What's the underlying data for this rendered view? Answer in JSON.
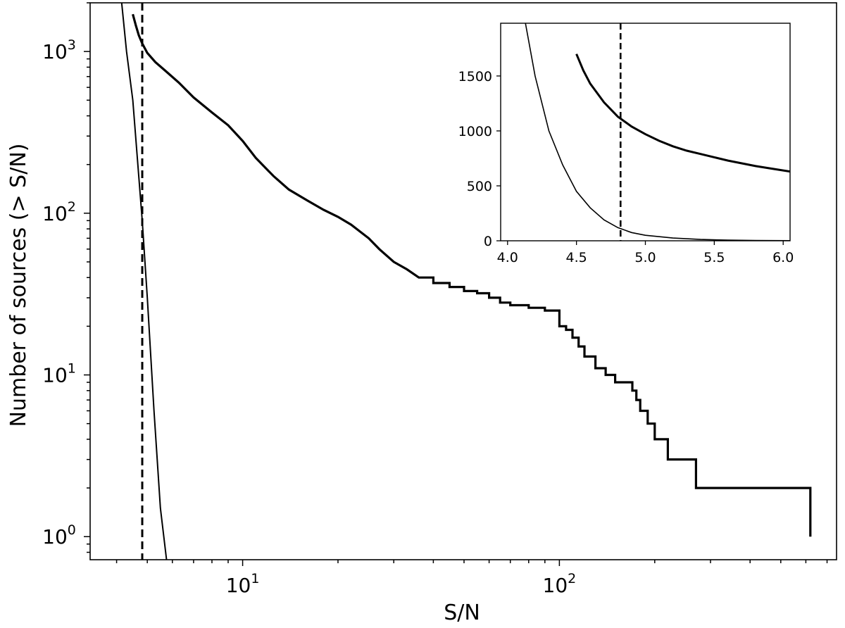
{
  "chart_data": [
    {
      "type": "line",
      "panel": "main",
      "xlabel": "S/N",
      "ylabel": "Number of sources (> S/N)",
      "xscale": "log",
      "yscale": "log",
      "xlim": [
        3.3,
        750
      ],
      "ylim": [
        0.72,
        2000
      ],
      "xticks": [
        {
          "value": 10,
          "base": "10",
          "exp": "1"
        },
        {
          "value": 100,
          "base": "10",
          "exp": "2"
        }
      ],
      "yticks": [
        {
          "value": 1,
          "base": "10",
          "exp": "0"
        },
        {
          "value": 10,
          "base": "10",
          "exp": "1"
        },
        {
          "value": 100,
          "base": "10",
          "exp": "2"
        },
        {
          "value": 1000,
          "base": "10",
          "exp": "3"
        }
      ],
      "grid": false,
      "legend": "none",
      "threshold_x": 4.82,
      "series": [
        {
          "style": "thick step",
          "x": [
            4.5,
            4.6,
            4.7,
            4.82,
            5.0,
            5.3,
            5.7,
            6.3,
            7.0,
            8.0,
            9.0,
            10.0,
            11.0,
            12.5,
            14.0,
            16.0,
            18.0,
            20.0,
            22.0,
            25.0,
            27.0,
            30.0,
            33.0,
            36.0,
            40.0,
            45.0,
            50.0,
            55.0,
            60.0,
            65.0,
            70.0,
            80.0,
            90.0,
            100.0,
            105.0,
            110.0,
            115.0,
            120.0,
            130.0,
            140.0,
            150.0,
            160.0,
            170.0,
            175.0,
            180.0,
            190.0,
            200.0,
            220.0,
            270.0,
            620.0,
            620.0
          ],
          "y": [
            1700,
            1450,
            1260,
            1120,
            980,
            860,
            760,
            640,
            520,
            420,
            350,
            280,
            220,
            170,
            140,
            120,
            105,
            95,
            85,
            70,
            60,
            50,
            45,
            40,
            37,
            35,
            33,
            32,
            30,
            28,
            27,
            26,
            25,
            20,
            19,
            17,
            15,
            13,
            11,
            10,
            9,
            9,
            8,
            7,
            6,
            5,
            4,
            3,
            2,
            2,
            1
          ]
        },
        {
          "style": "thin model",
          "x": [
            4.15,
            4.3,
            4.5,
            4.82,
            5.0,
            5.25,
            5.5,
            5.75
          ],
          "y": [
            2000,
            1000,
            500,
            90,
            30,
            6,
            1.5,
            0.72
          ]
        }
      ]
    },
    {
      "type": "line",
      "panel": "inset",
      "xscale": "linear",
      "yscale": "linear",
      "xlim": [
        3.95,
        6.05
      ],
      "ylim": [
        0,
        1980
      ],
      "xticks": [
        "4.0",
        "4.5",
        "5.0",
        "5.5",
        "6.0"
      ],
      "yticks": [
        "0",
        "500",
        "1000",
        "1500"
      ],
      "grid": false,
      "legend": "none",
      "threshold_x": 4.82,
      "series": [
        {
          "style": "thick",
          "x": [
            4.5,
            4.55,
            4.6,
            4.7,
            4.8,
            4.9,
            5.0,
            5.1,
            5.2,
            5.3,
            5.4,
            5.5,
            5.6,
            5.7,
            5.8,
            5.9,
            6.05
          ],
          "y": [
            1700,
            1550,
            1430,
            1260,
            1130,
            1040,
            970,
            910,
            860,
            820,
            790,
            760,
            730,
            705,
            680,
            660,
            630
          ]
        },
        {
          "style": "thin model",
          "x": [
            4.13,
            4.2,
            4.3,
            4.4,
            4.5,
            4.6,
            4.7,
            4.8,
            4.9,
            5.0,
            5.2,
            5.4,
            5.6,
            5.8,
            6.05
          ],
          "y": [
            1980,
            1500,
            1000,
            690,
            450,
            300,
            190,
            120,
            75,
            50,
            25,
            12,
            6,
            3,
            1
          ]
        }
      ]
    }
  ]
}
